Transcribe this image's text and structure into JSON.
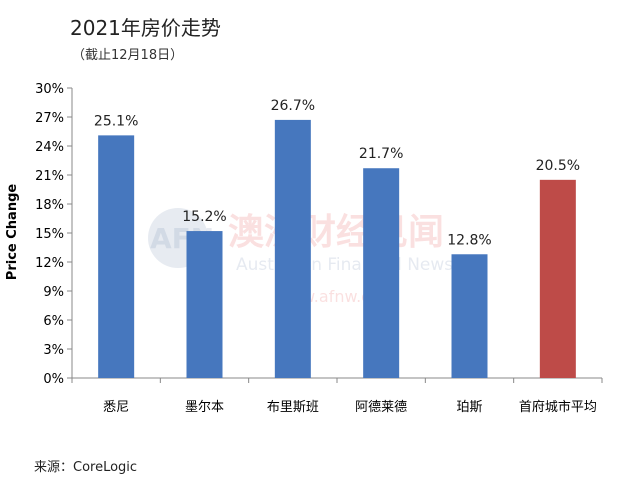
{
  "header": {
    "title": "2021年房价走势",
    "subtitle": "（截止12月18日）"
  },
  "footer": {
    "source": "来源：CoreLogic"
  },
  "watermark": {
    "logo": "AFN",
    "cn": "澳洲财经见闻",
    "en": "Australian Financial News",
    "url": "www.afnw.com"
  },
  "colors": {
    "blue": "#4677BE",
    "red": "#BE4B48",
    "axis": "#888888"
  },
  "chart_data": {
    "type": "bar",
    "categories": [
      "悉尼",
      "墨尔本",
      "布里斯班",
      "阿德莱德",
      "珀斯",
      "首府城市平均"
    ],
    "values": [
      25.1,
      15.2,
      26.7,
      21.7,
      12.8,
      20.5
    ],
    "data_labels": [
      "25.1%",
      "15.2%",
      "26.7%",
      "21.7%",
      "12.8%",
      "20.5%"
    ],
    "bar_colors": [
      "#4677BE",
      "#4677BE",
      "#4677BE",
      "#4677BE",
      "#4677BE",
      "#BE4B48"
    ],
    "ylabel": "Price Change",
    "ylim": [
      0,
      30
    ],
    "yticks": [
      0,
      3,
      6,
      9,
      12,
      15,
      18,
      21,
      24,
      27,
      30
    ],
    "ytick_labels": [
      "0%",
      "3%",
      "6%",
      "9%",
      "12%",
      "15%",
      "18%",
      "21%",
      "24%",
      "27%",
      "30%"
    ],
    "grid": false,
    "legend": "none"
  }
}
